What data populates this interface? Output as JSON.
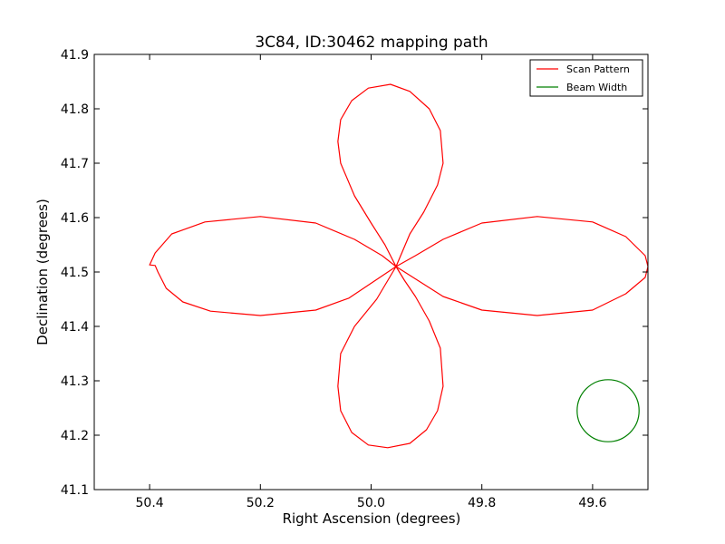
{
  "chart_data": {
    "type": "line",
    "title": "3C84, ID:30462 mapping path",
    "xlabel": "Right Ascension (degrees)",
    "ylabel": "Declination (degrees)",
    "xlim": [
      50.5,
      49.5
    ],
    "ylim": [
      41.1,
      41.9
    ],
    "x_inverted": true,
    "xticks": [
      "50.4",
      "50.2",
      "50.0",
      "49.8",
      "49.6"
    ],
    "xtick_values": [
      50.4,
      50.2,
      50.0,
      49.8,
      49.6
    ],
    "yticks": [
      "41.1",
      "41.2",
      "41.3",
      "41.4",
      "41.5",
      "41.6",
      "41.7",
      "41.8",
      "41.9"
    ],
    "ytick_values": [
      41.1,
      41.2,
      41.3,
      41.4,
      41.5,
      41.6,
      41.7,
      41.8,
      41.9
    ],
    "grid": false,
    "legend_position": "top-right",
    "series": [
      {
        "name": "Scan Pattern",
        "color": "#ff0000",
        "points": [
          [
            49.955,
            41.51
          ],
          [
            49.975,
            41.55
          ],
          [
            50.0,
            41.59
          ],
          [
            50.03,
            41.64
          ],
          [
            50.055,
            41.7
          ],
          [
            50.06,
            41.74
          ],
          [
            50.055,
            41.78
          ],
          [
            50.035,
            41.815
          ],
          [
            50.005,
            41.838
          ],
          [
            49.965,
            41.845
          ],
          [
            49.93,
            41.832
          ],
          [
            49.895,
            41.8
          ],
          [
            49.875,
            41.76
          ],
          [
            49.87,
            41.7
          ],
          [
            49.88,
            41.66
          ],
          [
            49.905,
            41.61
          ],
          [
            49.93,
            41.57
          ],
          [
            49.955,
            41.51
          ],
          [
            49.98,
            41.53
          ],
          [
            50.03,
            41.56
          ],
          [
            50.1,
            41.59
          ],
          [
            50.2,
            41.602
          ],
          [
            50.3,
            41.592
          ],
          [
            50.36,
            41.57
          ],
          [
            50.39,
            41.535
          ],
          [
            50.4,
            41.513
          ],
          [
            50.39,
            41.512
          ],
          [
            50.385,
            41.5
          ],
          [
            50.37,
            41.47
          ],
          [
            50.34,
            41.445
          ],
          [
            50.29,
            41.428
          ],
          [
            50.2,
            41.42
          ],
          [
            50.1,
            41.43
          ],
          [
            50.04,
            41.452
          ],
          [
            49.955,
            41.51
          ],
          [
            49.94,
            41.485
          ],
          [
            49.92,
            41.455
          ],
          [
            49.895,
            41.41
          ],
          [
            49.875,
            41.36
          ],
          [
            49.87,
            41.29
          ],
          [
            49.88,
            41.245
          ],
          [
            49.9,
            41.21
          ],
          [
            49.93,
            41.185
          ],
          [
            49.97,
            41.177
          ],
          [
            50.005,
            41.182
          ],
          [
            50.035,
            41.205
          ],
          [
            50.055,
            41.245
          ],
          [
            50.06,
            41.29
          ],
          [
            50.055,
            41.35
          ],
          [
            50.03,
            41.4
          ],
          [
            49.99,
            41.45
          ],
          [
            49.955,
            41.51
          ],
          [
            49.92,
            41.53
          ],
          [
            49.87,
            41.56
          ],
          [
            49.8,
            41.59
          ],
          [
            49.7,
            41.602
          ],
          [
            49.6,
            41.592
          ],
          [
            49.54,
            41.565
          ],
          [
            49.505,
            41.53
          ],
          [
            49.5,
            41.51
          ],
          [
            49.505,
            41.49
          ],
          [
            49.54,
            41.46
          ],
          [
            49.6,
            41.43
          ],
          [
            49.7,
            41.42
          ],
          [
            49.8,
            41.43
          ],
          [
            49.87,
            41.455
          ],
          [
            49.955,
            41.51
          ]
        ]
      },
      {
        "name": "Beam Width",
        "color": "#008000",
        "shape": "circle",
        "center": [
          49.572,
          41.245
        ],
        "radius_dec": 0.057
      }
    ]
  }
}
